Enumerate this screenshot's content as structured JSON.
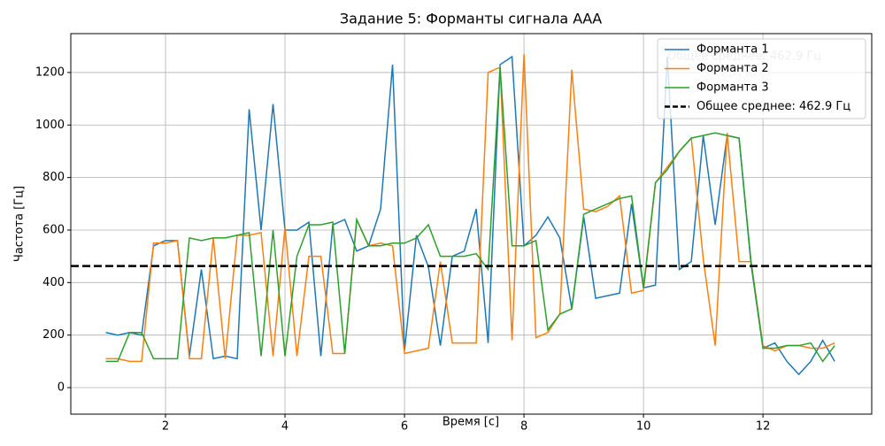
{
  "chart_data": {
    "type": "line",
    "title": "Задание 5: Форманты сигнала ААА",
    "xlabel": "Время [с]",
    "ylabel": "Частота [Гц]",
    "x": [
      1.0,
      1.2,
      1.4,
      1.6,
      1.8,
      2.0,
      2.2,
      2.4,
      2.6,
      2.8,
      3.0,
      3.2,
      3.4,
      3.6,
      3.8,
      4.0,
      4.2,
      4.4,
      4.6,
      4.8,
      5.0,
      5.2,
      5.4,
      5.6,
      5.8,
      6.0,
      6.2,
      6.4,
      6.6,
      6.8,
      7.0,
      7.2,
      7.4,
      7.6,
      7.8,
      8.0,
      8.2,
      8.4,
      8.6,
      8.8,
      9.0,
      9.2,
      9.4,
      9.6,
      9.8,
      10.0,
      10.2,
      10.4,
      10.6,
      10.8,
      11.0,
      11.2,
      11.4,
      11.6,
      11.8,
      12.0,
      12.2,
      12.4,
      12.6,
      12.8,
      13.0,
      13.2
    ],
    "series": [
      {
        "name": "Форманта 1",
        "color": "#1f77b4",
        "values": [
          210,
          200,
          210,
          200,
          540,
          560,
          560,
          120,
          450,
          110,
          120,
          110,
          1060,
          600,
          1080,
          600,
          600,
          630,
          120,
          620,
          640,
          520,
          540,
          680,
          1230,
          140,
          580,
          460,
          160,
          500,
          520,
          680,
          170,
          1230,
          1260,
          540,
          580,
          650,
          570,
          300,
          650,
          340,
          350,
          360,
          700,
          380,
          390,
          1260,
          450,
          480,
          960,
          620,
          960,
          950,
          470,
          150,
          170,
          100,
          50,
          100,
          180,
          100
        ]
      },
      {
        "name": "Форманта 2",
        "color": "#ff7f0e",
        "values": [
          110,
          110,
          100,
          100,
          550,
          550,
          560,
          110,
          110,
          570,
          110,
          580,
          580,
          590,
          120,
          610,
          120,
          500,
          500,
          130,
          130,
          640,
          540,
          550,
          540,
          130,
          140,
          150,
          480,
          170,
          170,
          170,
          1200,
          1220,
          180,
          1270,
          190,
          210,
          280,
          1210,
          680,
          670,
          690,
          730,
          360,
          370,
          780,
          840,
          900,
          950,
          490,
          160,
          970,
          480,
          480,
          160,
          140,
          160,
          160,
          150,
          150,
          170
        ]
      },
      {
        "name": "Форманта 3",
        "color": "#2ca02c",
        "values": [
          100,
          100,
          210,
          210,
          110,
          110,
          110,
          570,
          560,
          570,
          570,
          580,
          590,
          120,
          600,
          120,
          500,
          620,
          620,
          630,
          130,
          640,
          540,
          540,
          550,
          550,
          570,
          620,
          500,
          500,
          500,
          510,
          450,
          1220,
          540,
          540,
          560,
          220,
          280,
          300,
          660,
          680,
          700,
          720,
          730,
          380,
          780,
          830,
          900,
          950,
          960,
          970,
          960,
          950,
          480,
          150,
          150,
          160,
          160,
          170,
          100,
          160
        ]
      }
    ],
    "hline": {
      "value": 462.9,
      "label": "Общее среднее: 462.9 Гц",
      "color": "#000000"
    },
    "xlim": [
      0.415,
      13.82
    ],
    "ylim": [
      -101,
      1348
    ],
    "xticks": [
      2,
      4,
      6,
      8,
      10,
      12
    ],
    "yticks": [
      0,
      200,
      400,
      600,
      800,
      1000,
      1200
    ],
    "grid": true,
    "legend": "upper right"
  }
}
